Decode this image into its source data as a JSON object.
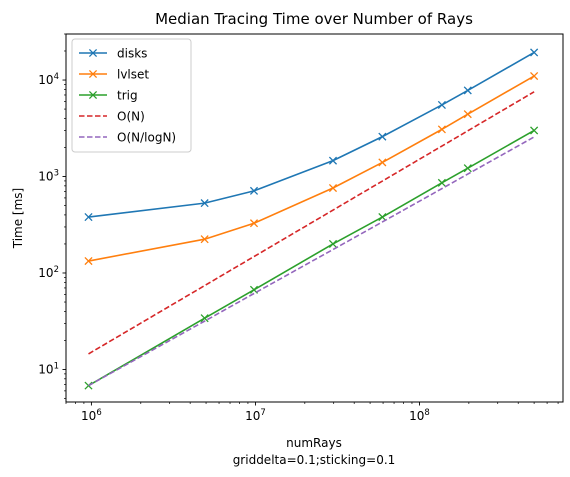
{
  "chart_data": {
    "type": "line",
    "title": "Median Tracing Time over Number of Rays",
    "xlabel": "numRays",
    "xlabel_sub": "griddelta=0.1;sticking=0.1",
    "ylabel": "Time [ms]",
    "xscale": "log",
    "yscale": "log",
    "xlim": [
      700000,
      750000000
    ],
    "ylim": [
      4.6,
      30000
    ],
    "grid": false,
    "legend_position": "top-left",
    "x_ticks": [
      {
        "value": 1000000,
        "base": "10",
        "exp": "6"
      },
      {
        "value": 10000000,
        "base": "10",
        "exp": "7"
      },
      {
        "value": 100000000,
        "base": "10",
        "exp": "8"
      }
    ],
    "y_ticks": [
      {
        "value": 10,
        "base": "10",
        "exp": "1"
      },
      {
        "value": 100,
        "base": "10",
        "exp": "2"
      },
      {
        "value": 1000,
        "base": "10",
        "exp": "3"
      },
      {
        "value": 10000,
        "base": "10",
        "exp": "4"
      }
    ],
    "series": [
      {
        "name": "disks",
        "color": "#1f77b4",
        "style": "solid",
        "marker": "x",
        "x": [
          960000,
          4900000,
          9800000,
          29700000,
          59400000,
          137000000,
          197000000,
          500000000
        ],
        "y": [
          380,
          530,
          710,
          1460,
          2590,
          5520,
          7810,
          19300
        ]
      },
      {
        "name": "lvlset",
        "color": "#ff7f0e",
        "style": "solid",
        "marker": "x",
        "x": [
          960000,
          4900000,
          9800000,
          29700000,
          59400000,
          137000000,
          197000000,
          500000000
        ],
        "y": [
          133,
          224,
          328,
          760,
          1400,
          3080,
          4430,
          11000
        ]
      },
      {
        "name": "trig",
        "color": "#2ca02c",
        "style": "solid",
        "marker": "x",
        "x": [
          960000,
          4900000,
          9800000,
          29700000,
          59400000,
          137000000,
          197000000,
          500000000
        ],
        "y": [
          6.8,
          34,
          67,
          200,
          380,
          860,
          1220,
          3000
        ]
      },
      {
        "name": "O(N)",
        "color": "#d62728",
        "style": "dashed",
        "marker": "",
        "x": [
          960000,
          500000000
        ],
        "y": [
          14.5,
          7550
        ]
      },
      {
        "name": "O(N/logN)",
        "color": "#9467bd",
        "style": "dashed",
        "marker": "",
        "x": [
          960000,
          4900000,
          9800000,
          29700000,
          59400000,
          137000000,
          197000000,
          500000000
        ],
        "y": [
          6.8,
          31.7,
          61.3,
          175,
          338,
          749,
          1060,
          2570
        ]
      }
    ]
  }
}
